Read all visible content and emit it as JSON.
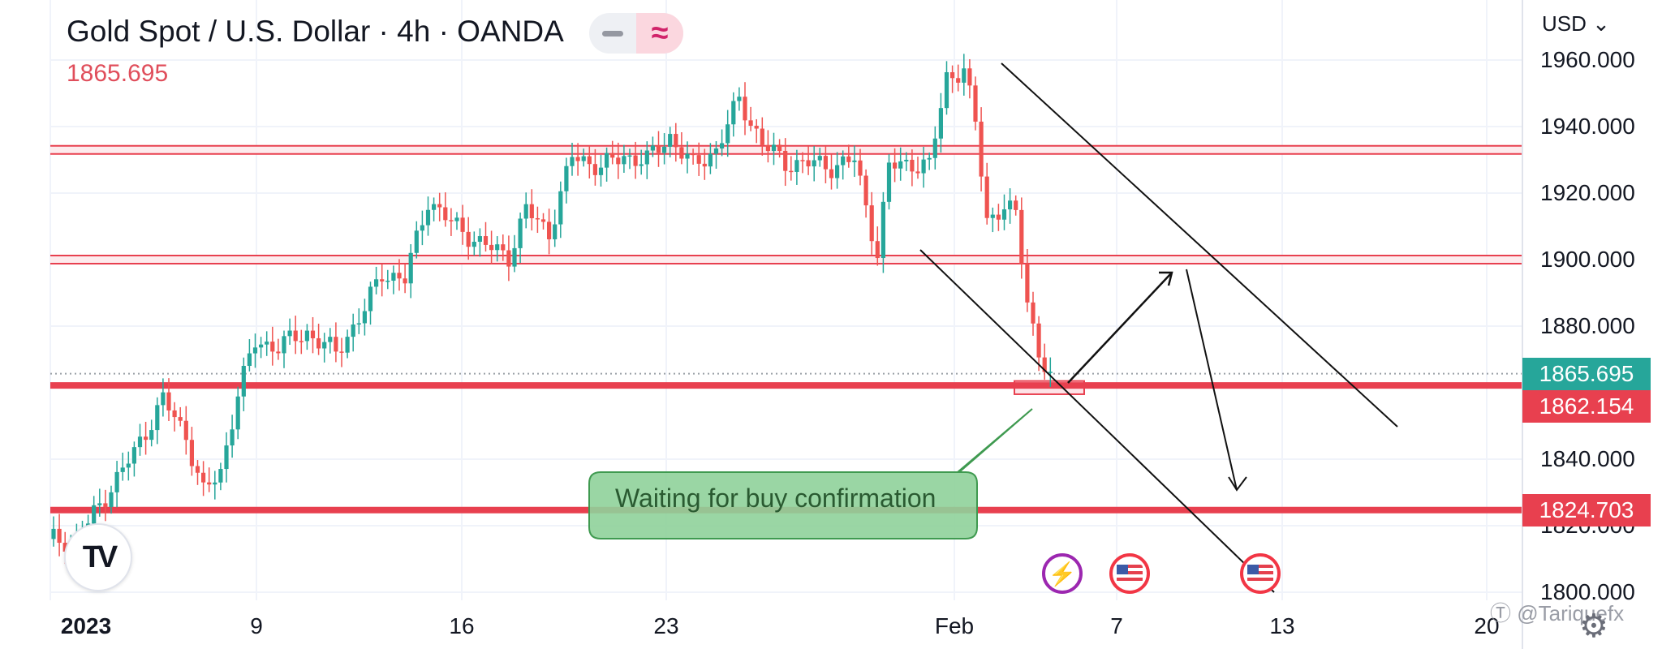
{
  "header": {
    "title": "Gold Spot / U.S. Dollar · 4h · OANDA",
    "last_price": "1865.695",
    "toggle_minus_icon": "minus-icon",
    "toggle_wave_icon": "approx-wave-icon",
    "wave_glyph": "≈"
  },
  "currency": {
    "label": "USD ⌄"
  },
  "colors": {
    "bull": "#26a69a",
    "bear": "#ef5350",
    "level_line": "#e8404f",
    "zone_fill": "#fde3e7",
    "callout_fill": "#8fd19a",
    "callout_border": "#3f9a50",
    "current_price_tag": "#26a69a",
    "level_tag": "#e8404f"
  },
  "price_tags": [
    {
      "name": "current-price-tag",
      "value": 1865.695,
      "label": "1865.695",
      "color": "#26a69a"
    },
    {
      "name": "support-price-tag",
      "value": 1862.154,
      "label": "1862.154",
      "color": "#e8404f"
    },
    {
      "name": "lower-support-price-tag",
      "value": 1824.703,
      "label": "1824.703",
      "color": "#e8404f"
    }
  ],
  "annotations": {
    "callout_text": "Waiting for buy confirmation",
    "watermark": "Ⓣ @Tariquefx"
  },
  "events": [
    {
      "type": "flash",
      "icon": "lightning-icon",
      "glyph": "⚡"
    },
    {
      "type": "flag",
      "icon": "us-flag-icon"
    },
    {
      "type": "flag",
      "icon": "us-flag-icon"
    }
  ],
  "chart_data": {
    "type": "candlestick",
    "title": "Gold Spot / U.S. Dollar · 4h · OANDA",
    "ylim": [
      1800,
      1960
    ],
    "y_ticks": [
      {
        "value": 1960,
        "label": "1960.000"
      },
      {
        "value": 1940,
        "label": "1940.000"
      },
      {
        "value": 1920,
        "label": "1920.000"
      },
      {
        "value": 1900,
        "label": "1900.000"
      },
      {
        "value": 1880,
        "label": "1880.000"
      },
      {
        "value": 1840,
        "label": "1840.000"
      },
      {
        "value": 1820,
        "label": "1820.000"
      },
      {
        "value": 1800,
        "label": "1800.000"
      }
    ],
    "x_ticks": [
      "2023",
      "9",
      "16",
      "23",
      "Feb",
      "7",
      "13",
      "20"
    ],
    "horizontal_levels": [
      {
        "name": "resistance-upper",
        "value": 1933,
        "style": "double"
      },
      {
        "name": "resistance-lower",
        "value": 1900,
        "style": "double"
      },
      {
        "name": "support",
        "value": 1862.154,
        "style": "thick"
      },
      {
        "name": "support-lower",
        "value": 1824.703,
        "style": "thick"
      }
    ],
    "current_price": 1865.695,
    "close_path": [
      [
        1,
        1816
      ],
      [
        5,
        1815
      ],
      [
        10,
        1829
      ],
      [
        15,
        1842
      ],
      [
        20,
        1858
      ],
      [
        24,
        1847
      ],
      [
        27,
        1830
      ],
      [
        30,
        1836
      ],
      [
        33,
        1860
      ],
      [
        36,
        1875
      ],
      [
        40,
        1874
      ],
      [
        45,
        1878
      ],
      [
        50,
        1872
      ],
      [
        55,
        1885
      ],
      [
        58,
        1896
      ],
      [
        62,
        1894
      ],
      [
        66,
        1918
      ],
      [
        70,
        1911
      ],
      [
        75,
        1905
      ],
      [
        80,
        1901
      ],
      [
        83,
        1915
      ],
      [
        87,
        1908
      ],
      [
        91,
        1931
      ],
      [
        96,
        1928
      ],
      [
        100,
        1931
      ],
      [
        104,
        1930
      ],
      [
        108,
        1937
      ],
      [
        112,
        1928
      ],
      [
        116,
        1933
      ],
      [
        120,
        1948
      ],
      [
        124,
        1935
      ],
      [
        128,
        1929
      ],
      [
        132,
        1929
      ],
      [
        136,
        1928
      ],
      [
        140,
        1930
      ],
      [
        144,
        1902
      ],
      [
        146,
        1928
      ],
      [
        150,
        1929
      ],
      [
        153,
        1928
      ],
      [
        156,
        1955
      ],
      [
        159,
        1957
      ],
      [
        161,
        1941
      ],
      [
        163,
        1912
      ],
      [
        166,
        1916
      ],
      [
        168,
        1913
      ],
      [
        170,
        1888
      ],
      [
        172,
        1872
      ],
      [
        174,
        1864
      ]
    ]
  }
}
